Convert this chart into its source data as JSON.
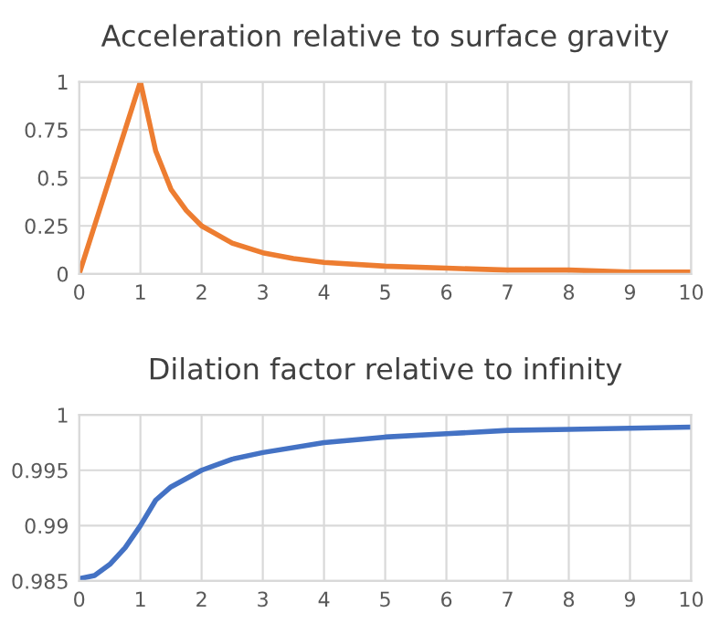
{
  "chart_data": [
    {
      "type": "line",
      "title": "Acceleration relative to surface gravity",
      "xlim": [
        0,
        10
      ],
      "xticks": [
        0,
        1,
        2,
        3,
        4,
        5,
        6,
        7,
        8,
        9,
        10
      ],
      "ylim": [
        0,
        1
      ],
      "yticks": [
        0,
        0.25,
        0.5,
        0.75,
        1
      ],
      "grid": true,
      "series": [
        {
          "color": "#ed7d31",
          "x": [
            0,
            0.25,
            0.5,
            0.75,
            1,
            1.25,
            1.5,
            1.75,
            2,
            2.5,
            3,
            3.5,
            4,
            5,
            6,
            7,
            8,
            9,
            10
          ],
          "values": [
            0,
            0.25,
            0.5,
            0.75,
            1,
            0.64,
            0.44,
            0.33,
            0.25,
            0.16,
            0.11,
            0.08,
            0.06,
            0.04,
            0.03,
            0.02,
            0.02,
            0.01,
            0.01
          ]
        }
      ]
    },
    {
      "type": "line",
      "title": "Dilation factor relative to infinity",
      "xlim": [
        0,
        10
      ],
      "xticks": [
        0,
        1,
        2,
        3,
        4,
        5,
        6,
        7,
        8,
        9,
        10
      ],
      "ylim": [
        0.985,
        1
      ],
      "yticks": [
        0.985,
        0.99,
        0.995,
        1
      ],
      "grid": true,
      "series": [
        {
          "color": "#4472c4",
          "x": [
            0,
            0.25,
            0.5,
            0.75,
            1,
            1.25,
            1.5,
            2,
            2.5,
            3,
            4,
            5,
            6,
            7,
            8,
            9,
            10
          ],
          "values": [
            0.9852,
            0.9855,
            0.9865,
            0.988,
            0.99,
            0.9923,
            0.9935,
            0.995,
            0.996,
            0.9966,
            0.9975,
            0.998,
            0.9983,
            0.9986,
            0.9987,
            0.9988,
            0.9989
          ]
        }
      ]
    }
  ]
}
